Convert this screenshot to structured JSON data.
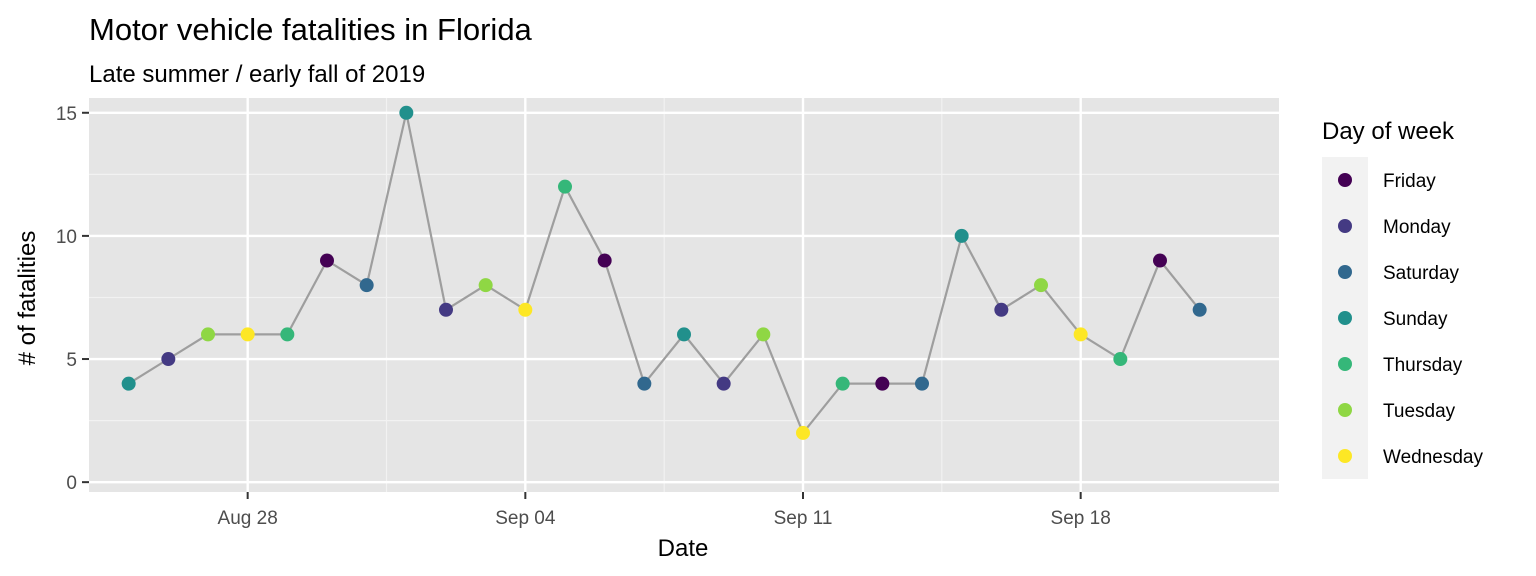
{
  "chart_data": {
    "type": "line",
    "title": "Motor vehicle fatalities in Florida",
    "subtitle": "Late summer / early fall of 2019",
    "xlabel": "Date",
    "ylabel": "# of fatalities",
    "xlim": [
      "2019-08-24",
      "2019-09-23"
    ],
    "ylim": [
      -0.4,
      15.6
    ],
    "x_ticks": [
      "2019-08-28",
      "2019-09-04",
      "2019-09-11",
      "2019-09-18"
    ],
    "x_tick_labels": [
      "Aug 28",
      "Sep 04",
      "Sep 11",
      "Sep 18"
    ],
    "y_ticks": [
      0,
      5,
      10,
      15
    ],
    "y_tick_labels": [
      "0",
      "5",
      "10",
      "15"
    ],
    "grid": true,
    "legend_position": "right",
    "legend_title": "Day of week",
    "line_color": "#9e9e9e",
    "panel_background": "#e5e5e5",
    "categories": [
      {
        "name": "Friday",
        "color": "#440154"
      },
      {
        "name": "Monday",
        "color": "#443a83"
      },
      {
        "name": "Saturday",
        "color": "#31688e"
      },
      {
        "name": "Sunday",
        "color": "#21908c"
      },
      {
        "name": "Thursday",
        "color": "#35b779"
      },
      {
        "name": "Tuesday",
        "color": "#8fd744"
      },
      {
        "name": "Wednesday",
        "color": "#fde725"
      }
    ],
    "points": [
      {
        "x": "2019-08-25",
        "y": 4,
        "day": "Sunday"
      },
      {
        "x": "2019-08-26",
        "y": 5,
        "day": "Monday"
      },
      {
        "x": "2019-08-27",
        "y": 6,
        "day": "Tuesday"
      },
      {
        "x": "2019-08-28",
        "y": 6,
        "day": "Wednesday"
      },
      {
        "x": "2019-08-29",
        "y": 6,
        "day": "Thursday"
      },
      {
        "x": "2019-08-30",
        "y": 9,
        "day": "Friday"
      },
      {
        "x": "2019-08-31",
        "y": 8,
        "day": "Saturday"
      },
      {
        "x": "2019-09-01",
        "y": 15,
        "day": "Sunday"
      },
      {
        "x": "2019-09-02",
        "y": 7,
        "day": "Monday"
      },
      {
        "x": "2019-09-03",
        "y": 8,
        "day": "Tuesday"
      },
      {
        "x": "2019-09-04",
        "y": 7,
        "day": "Wednesday"
      },
      {
        "x": "2019-09-05",
        "y": 12,
        "day": "Thursday"
      },
      {
        "x": "2019-09-06",
        "y": 9,
        "day": "Friday"
      },
      {
        "x": "2019-09-07",
        "y": 4,
        "day": "Saturday"
      },
      {
        "x": "2019-09-08",
        "y": 6,
        "day": "Sunday"
      },
      {
        "x": "2019-09-09",
        "y": 4,
        "day": "Monday"
      },
      {
        "x": "2019-09-10",
        "y": 6,
        "day": "Tuesday"
      },
      {
        "x": "2019-09-11",
        "y": 2,
        "day": "Wednesday"
      },
      {
        "x": "2019-09-12",
        "y": 4,
        "day": "Thursday"
      },
      {
        "x": "2019-09-13",
        "y": 4,
        "day": "Friday"
      },
      {
        "x": "2019-09-14",
        "y": 4,
        "day": "Saturday"
      },
      {
        "x": "2019-09-15",
        "y": 10,
        "day": "Sunday"
      },
      {
        "x": "2019-09-16",
        "y": 7,
        "day": "Monday"
      },
      {
        "x": "2019-09-17",
        "y": 8,
        "day": "Tuesday"
      },
      {
        "x": "2019-09-18",
        "y": 6,
        "day": "Wednesday"
      },
      {
        "x": "2019-09-19",
        "y": 5,
        "day": "Thursday"
      },
      {
        "x": "2019-09-20",
        "y": 9,
        "day": "Friday"
      },
      {
        "x": "2019-09-21",
        "y": 7,
        "day": "Saturday"
      }
    ]
  }
}
